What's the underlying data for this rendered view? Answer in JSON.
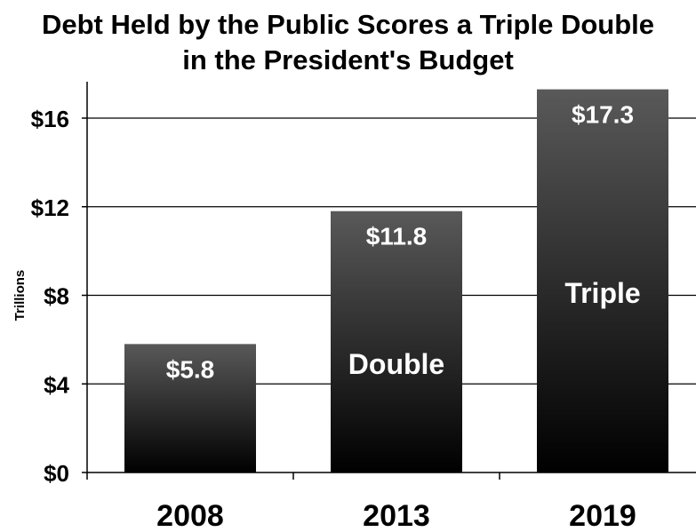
{
  "chart_data": {
    "type": "bar",
    "title": "Debt Held by the Public Scores a Triple Double",
    "subtitle": "in the President's Budget",
    "ylabel": "Trillions",
    "xlabel": "",
    "categories": [
      "2008",
      "2013",
      "2019"
    ],
    "values": [
      5.8,
      11.8,
      17.3
    ],
    "value_labels": [
      "$5.8",
      "$11.8",
      "$17.3"
    ],
    "bar_annotations": [
      "",
      "Double",
      "Triple"
    ],
    "ylim": [
      0,
      16
    ],
    "y_ticks": [
      0,
      4,
      8,
      12,
      16
    ],
    "y_tick_labels": [
      "$0",
      "$4",
      "$8",
      "$12",
      "$16"
    ],
    "grid": true,
    "legend": "none",
    "colors": {
      "bar_top": "#595959",
      "bar_bottom": "#000000",
      "label": "#ffffff",
      "grid": "#000000"
    }
  }
}
